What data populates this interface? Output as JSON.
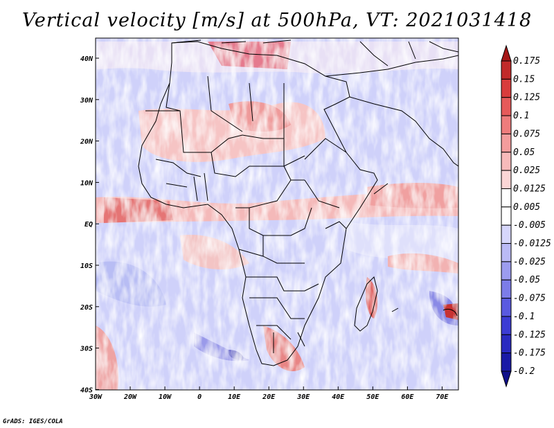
{
  "title": "Vertical velocity [m/s] at 500hPa, VT: 2021031418",
  "credit": "GrADS: IGES/COLA",
  "lon_ticks": [
    "30W",
    "20W",
    "10W",
    "0",
    "10E",
    "20E",
    "30E",
    "40E",
    "50E",
    "60E",
    "70E"
  ],
  "lat_ticks": [
    "40N",
    "30N",
    "20N",
    "10N",
    "EQ",
    "10S",
    "20S",
    "30S",
    "40S"
  ],
  "colorbar": {
    "labels": [
      "0.175",
      "0.15",
      "0.125",
      "0.1",
      "0.075",
      "0.05",
      "0.025",
      "0.0125",
      "0.005",
      "-0.005",
      "-0.0125",
      "-0.025",
      "-0.05",
      "-0.075",
      "-0.1",
      "-0.125",
      "-0.175",
      "-0.2"
    ],
    "colors": [
      "#a51717",
      "#c12a2a",
      "#d83c3c",
      "#e65a5a",
      "#ee7c7c",
      "#f39c9c",
      "#f7baba",
      "#fbd6d6",
      "#ffffff",
      "#ffffff",
      "#d6d6fb",
      "#babaf5",
      "#9c9cef",
      "#7c7ce8",
      "#5a5ae0",
      "#3c3cd4",
      "#2a2ac0",
      "#1a1aa6",
      "#0f0f8a"
    ]
  },
  "colors": {
    "frame": "#000000",
    "background": "#ffffff"
  }
}
